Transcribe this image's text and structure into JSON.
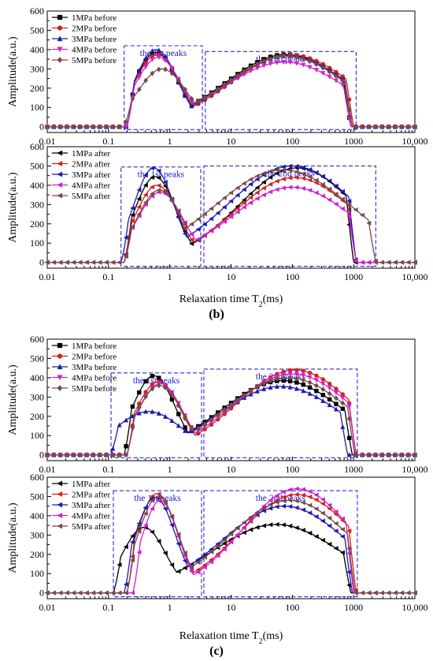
{
  "panel_labels": [
    "(b)",
    "(c)"
  ],
  "colors": {
    "1MPa": "#000000",
    "2MPa": "#d42020",
    "3MPa": "#1c1cb0",
    "4MPa": "#d020d0",
    "5MPa": "#7a4a4a",
    "box": "#2a2ad8"
  },
  "chart_data": [
    {
      "type": "line",
      "panel": "b",
      "xlabel": "",
      "ylabel": "Amplitude(a.u.)",
      "xscale": "log",
      "xlim": [
        0.01,
        10000
      ],
      "ylim": [
        -30,
        600
      ],
      "xticks": [
        "0.01",
        "0.1",
        "1",
        "10",
        "100",
        "1000",
        "10,000"
      ],
      "yticks": [
        0,
        100,
        200,
        300,
        400,
        500,
        600
      ],
      "legend": "top-left",
      "boxes": [
        {
          "label": "the 1st peaks",
          "x": [
            0.18,
            3.4
          ],
          "y": [
            -15,
            420
          ]
        },
        {
          "label": "the 2nd peaks",
          "x": [
            3.8,
            1100
          ],
          "y": [
            -15,
            390
          ]
        }
      ],
      "series": [
        {
          "name": "1MPa before",
          "color": "#000000",
          "marker": "square",
          "p1": [
            0.6,
            385,
            0.36
          ],
          "p2": [
            80,
            375,
            1.0
          ],
          "valley": 25,
          "cut": [
            0.2,
            3.2,
            900
          ]
        },
        {
          "name": "2MPa before",
          "color": "#d42020",
          "marker": "circle",
          "p1": [
            0.62,
            375,
            0.37
          ],
          "p2": [
            95,
            372,
            1.0
          ],
          "valley": 35,
          "cut": [
            0.2,
            3.2,
            1000
          ]
        },
        {
          "name": "3MPa before",
          "color": "#1c1cb0",
          "marker": "triangle",
          "p1": [
            0.6,
            400,
            0.35
          ],
          "p2": [
            85,
            368,
            1.0
          ],
          "valley": 30,
          "cut": [
            0.2,
            3.2,
            950
          ]
        },
        {
          "name": "4MPa before",
          "color": "#d020d0",
          "marker": "triangle-down",
          "p1": [
            0.65,
            360,
            0.38
          ],
          "p2": [
            75,
            335,
            1.02
          ],
          "valley": 80,
          "cut": [
            0.2,
            3.4,
            900
          ]
        },
        {
          "name": "5MPa before",
          "color": "#7a4a4a",
          "marker": "diamond",
          "p1": [
            0.75,
            300,
            0.4
          ],
          "p2": [
            80,
            365,
            1.0
          ],
          "valley": 50,
          "cut": [
            0.18,
            3.4,
            950
          ]
        }
      ]
    },
    {
      "type": "line",
      "panel": "b",
      "xlabel": "Relaxation time T2(ms)",
      "ylabel": "Amplitude(a.u.)",
      "xscale": "log",
      "xlim": [
        0.01,
        10000
      ],
      "ylim": [
        -30,
        600
      ],
      "xticks": [
        "0.01",
        "0.1",
        "1",
        "10",
        "100",
        "1000",
        "10,000"
      ],
      "yticks": [
        0,
        100,
        200,
        300,
        400,
        500,
        600
      ],
      "legend": "top-left",
      "boxes": [
        {
          "label": "the 1st peaks",
          "x": [
            0.16,
            3.2
          ],
          "y": [
            -20,
            495
          ]
        },
        {
          "label": "the 2nd peaks",
          "x": [
            3.6,
            2300
          ],
          "y": [
            -20,
            500
          ]
        }
      ],
      "series": [
        {
          "name": "1MPa after",
          "color": "#000000",
          "marker": "triangle-left",
          "p1": [
            0.58,
            445,
            0.34
          ],
          "p2": [
            120,
            490,
            0.95
          ],
          "valley": 75,
          "cut": [
            0.18,
            3.0,
            1000
          ]
        },
        {
          "name": "2MPa after",
          "color": "#d42020",
          "marker": "triangle-left",
          "p1": [
            0.62,
            400,
            0.36
          ],
          "p2": [
            110,
            440,
            0.98
          ],
          "valley": 80,
          "cut": [
            0.18,
            3.0,
            1100
          ]
        },
        {
          "name": "3MPa after",
          "color": "#1c1cb0",
          "marker": "triangle-left",
          "p1": [
            0.55,
            490,
            0.33
          ],
          "p2": [
            100,
            500,
            1.05
          ],
          "valley": 95,
          "cut": [
            0.16,
            2.8,
            1100
          ]
        },
        {
          "name": "4MPa after",
          "color": "#d020d0",
          "marker": "triangle-left",
          "p1": [
            0.7,
            365,
            0.38
          ],
          "p2": [
            100,
            390,
            1.0
          ],
          "valley": 70,
          "cut": [
            0.18,
            3.2,
            1100
          ]
        },
        {
          "name": "5MPa after",
          "color": "#7a4a4a",
          "marker": "triangle-left",
          "p1": [
            0.68,
            375,
            0.37
          ],
          "p2": [
            70,
            480,
            1.12
          ],
          "valley": 85,
          "cut": [
            0.18,
            3.0,
            2300
          ]
        }
      ]
    },
    {
      "type": "line",
      "panel": "c",
      "xlabel": "",
      "ylabel": "Amplitude(a.u.)",
      "xscale": "log",
      "xlim": [
        0.01,
        10000
      ],
      "ylim": [
        -30,
        600
      ],
      "xticks": [
        "0.01",
        "0.1",
        "1",
        "10",
        "100",
        "1000",
        "10,000"
      ],
      "yticks": [
        0,
        100,
        200,
        300,
        400,
        500,
        600
      ],
      "legend": "top-left",
      "boxes": [
        {
          "label": "the 1st peaks",
          "x": [
            0.11,
            3.3
          ],
          "y": [
            -15,
            425
          ]
        },
        {
          "label": "the 2nd peaks",
          "x": [
            3.6,
            1150
          ],
          "y": [
            -15,
            445
          ]
        }
      ],
      "series": [
        {
          "name": "1MPa before",
          "color": "#000000",
          "marker": "square",
          "p1": [
            0.55,
            410,
            0.35
          ],
          "p2": [
            70,
            385,
            1.0
          ],
          "valley": 30,
          "cut": [
            0.18,
            3.0,
            950
          ]
        },
        {
          "name": "2MPa before",
          "color": "#d42020",
          "marker": "circle",
          "p1": [
            0.65,
            380,
            0.37
          ],
          "p2": [
            110,
            440,
            0.95
          ],
          "valley": 60,
          "cut": [
            0.2,
            3.2,
            1100
          ]
        },
        {
          "name": "3MPa before",
          "color": "#1c1cb0",
          "marker": "triangle",
          "p1": [
            0.45,
            225,
            0.55
          ],
          "p2": [
            65,
            355,
            1.0
          ],
          "valley": 100,
          "cut": [
            0.11,
            3.5,
            800
          ]
        },
        {
          "name": "4MPa before",
          "color": "#d020d0",
          "marker": "triangle-down",
          "p1": [
            0.7,
            370,
            0.37
          ],
          "p2": [
            100,
            420,
            0.98
          ],
          "valley": 50,
          "cut": [
            0.2,
            3.2,
            1100
          ]
        },
        {
          "name": "5MPa before",
          "color": "#7a4a4a",
          "marker": "diamond",
          "p1": [
            0.68,
            360,
            0.38
          ],
          "p2": [
            85,
            400,
            1.0
          ],
          "valley": 45,
          "cut": [
            0.2,
            3.2,
            1050
          ]
        }
      ]
    },
    {
      "type": "line",
      "panel": "c",
      "xlabel": "Relaxation time T2(ms)",
      "ylabel": "Amplitude(a.u.)",
      "xscale": "log",
      "xlim": [
        0.01,
        10000
      ],
      "ylim": [
        -30,
        600
      ],
      "xticks": [
        "0.01",
        "0.1",
        "1",
        "10",
        "100",
        "1000",
        "10,000"
      ],
      "yticks": [
        0,
        100,
        200,
        300,
        400,
        500,
        600
      ],
      "legend": "top-left",
      "boxes": [
        {
          "label": "the 1st peaks",
          "x": [
            0.12,
            3.3
          ],
          "y": [
            -20,
            530
          ]
        },
        {
          "label": "the 2nd peaks",
          "x": [
            3.6,
            1150
          ],
          "y": [
            -20,
            530
          ]
        }
      ],
      "series": [
        {
          "name": "1MPa after",
          "color": "#000000",
          "marker": "triangle-left",
          "p1": [
            0.38,
            340,
            0.35
          ],
          "p2": [
            55,
            355,
            1.05
          ],
          "valley": 140,
          "cut": [
            0.12,
            3.5,
            900
          ]
        },
        {
          "name": "2MPa after",
          "color": "#d42020",
          "marker": "triangle-left",
          "p1": [
            0.62,
            515,
            0.33
          ],
          "p2": [
            120,
            510,
            0.95
          ],
          "valley": 55,
          "cut": [
            0.2,
            3.2,
            1100
          ]
        },
        {
          "name": "3MPa after",
          "color": "#1c1cb0",
          "marker": "triangle-left",
          "p1": [
            0.58,
            495,
            0.33
          ],
          "p2": [
            75,
            450,
            1.02
          ],
          "valley": 60,
          "cut": [
            0.18,
            3.0,
            950
          ]
        },
        {
          "name": "4MPa after",
          "color": "#d020d0",
          "marker": "triangle-left",
          "p1": [
            0.7,
            480,
            0.3
          ],
          "p2": [
            120,
            540,
            0.9
          ],
          "valley": 50,
          "cut": [
            0.25,
            3.2,
            1000
          ]
        },
        {
          "name": "5MPa after",
          "color": "#7a4a4a",
          "marker": "triangle-left",
          "p1": [
            0.65,
            500,
            0.33
          ],
          "p2": [
            90,
            480,
            1.0
          ],
          "valley": 60,
          "cut": [
            0.2,
            3.2,
            1050
          ]
        }
      ]
    }
  ]
}
